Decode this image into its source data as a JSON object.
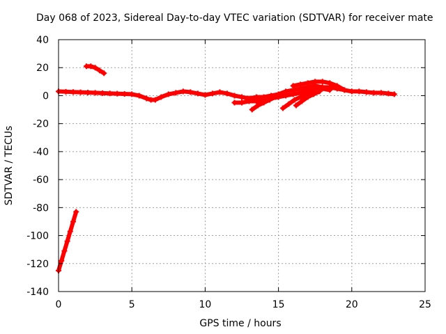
{
  "chart_data": {
    "type": "scatter",
    "title": "Day 068 of 2023, Sidereal Day-to-day VTEC variation (SDTVAR) for receiver mate",
    "xlabel": "GPS time / hours",
    "ylabel": "SDTVAR / TECUs",
    "xlim": [
      0,
      25
    ],
    "ylim": [
      -140,
      40
    ],
    "xticks": [
      0,
      5,
      10,
      15,
      20,
      25
    ],
    "yticks": [
      -140,
      -120,
      -100,
      -80,
      -60,
      -40,
      -20,
      0,
      20,
      40
    ],
    "xtick_labels": [
      "0",
      "5",
      "10",
      "15",
      "20",
      "25"
    ],
    "ytick_labels": [
      "-140",
      "-120",
      "-100",
      "-80",
      "-60",
      "-40",
      "-20",
      "0",
      "20",
      "40"
    ],
    "grid": true,
    "marker": "plus",
    "color": "#ff0000",
    "series": [
      {
        "name": "main-band",
        "x": [
          0.0,
          0.5,
          1.0,
          1.5,
          2.0,
          2.5,
          3.0,
          3.5,
          4.0,
          4.5,
          5.0,
          5.5,
          6.0,
          6.3,
          6.6,
          7.0,
          7.5,
          8.0,
          8.5,
          9.0,
          9.5,
          10.0,
          10.5,
          11.0,
          11.5,
          12.0,
          12.5,
          13.0,
          13.5,
          14.0,
          14.5,
          15.0,
          15.5,
          16.0,
          16.5,
          17.0,
          17.5,
          18.0,
          18.5,
          19.0,
          19.5,
          20.0,
          20.5,
          21.0,
          21.5,
          22.0,
          22.5,
          22.9
        ],
        "y": [
          3,
          2.8,
          2.6,
          2.4,
          2.2,
          2,
          1.8,
          1.6,
          1.4,
          1.2,
          1,
          0,
          -2,
          -3,
          -3,
          -1,
          1,
          2,
          3,
          2.5,
          1.5,
          0.5,
          1.5,
          2.5,
          1.5,
          0,
          -1,
          -2,
          -1,
          -1,
          0,
          1,
          3,
          4,
          5,
          6,
          7,
          6,
          6,
          5,
          4,
          3,
          3,
          2.5,
          2,
          2,
          1.5,
          1
        ]
      },
      {
        "name": "upper-arc",
        "x": [
          16.0,
          16.5,
          17.0,
          17.5,
          18.0,
          18.5,
          19.0,
          19.5
        ],
        "y": [
          7,
          8,
          9,
          10,
          10,
          9,
          7,
          4
        ]
      },
      {
        "name": "lower-branches",
        "x": [
          12.0,
          12.5,
          13.0,
          13.5,
          14.0,
          14.5,
          15.0,
          15.5,
          16.0,
          16.5,
          17.0,
          17.5,
          18.0,
          18.5
        ],
        "y": [
          -5,
          -5,
          -4,
          -4,
          -3,
          -2,
          -1,
          0,
          1,
          2,
          4,
          5,
          5,
          4
        ]
      },
      {
        "name": "falling-track-1",
        "x": [
          13.2,
          13.6,
          14.0,
          14.4,
          14.8,
          15.2
        ],
        "y": [
          -10,
          -7,
          -5,
          -3,
          -1,
          1
        ]
      },
      {
        "name": "falling-track-2",
        "x": [
          15.3,
          15.7,
          16.1,
          16.5,
          16.9,
          17.3
        ],
        "y": [
          -9,
          -6,
          -3,
          -1,
          1,
          3
        ]
      },
      {
        "name": "falling-track-3",
        "x": [
          16.2,
          16.6,
          17.0,
          17.4,
          17.8
        ],
        "y": [
          -7,
          -4,
          -1,
          1,
          3
        ]
      },
      {
        "name": "early-arc",
        "x": [
          1.9,
          2.2,
          2.5,
          2.8,
          3.1
        ],
        "y": [
          21,
          21,
          20,
          18,
          16
        ]
      },
      {
        "name": "steep-rise",
        "x": [
          0.0,
          0.2,
          0.4,
          0.6,
          0.8,
          1.0,
          1.2
        ],
        "y": [
          -125,
          -118,
          -111,
          -104,
          -97,
          -90,
          -83
        ]
      }
    ]
  }
}
